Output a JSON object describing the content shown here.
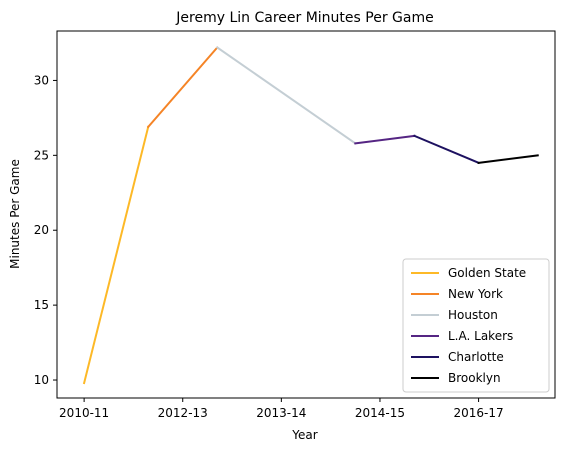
{
  "chart_data": {
    "type": "line",
    "title": "Jeremy Lin Career Minutes Per Game",
    "xlabel": "Year",
    "ylabel": "Minutes Per Game",
    "x_ticks": [
      {
        "x": 0,
        "label": "2010-11"
      },
      {
        "x": 2,
        "label": "2012-13"
      },
      {
        "x": 4,
        "label": "2013-14"
      },
      {
        "x": 6,
        "label": "2014-15"
      },
      {
        "x": 8,
        "label": "2016-17"
      }
    ],
    "y_ticks": [
      10,
      15,
      20,
      25,
      30
    ],
    "xlim": [
      -0.55,
      9.55
    ],
    "ylim": [
      8.8,
      33.3
    ],
    "grid": false,
    "legend_position": "lower-right",
    "series": [
      {
        "name": "Golden State",
        "color": "#FDB927",
        "points": [
          [
            0,
            9.8
          ],
          [
            1.3,
            26.9
          ]
        ]
      },
      {
        "name": "New York",
        "color": "#F58426",
        "points": [
          [
            1.3,
            26.9
          ],
          [
            2.7,
            32.2
          ]
        ]
      },
      {
        "name": "Houston",
        "color": "#C4CED4",
        "points": [
          [
            2.7,
            32.2
          ],
          [
            5.5,
            25.8
          ]
        ]
      },
      {
        "name": "L.A. Lakers",
        "color": "#552583",
        "points": [
          [
            5.5,
            25.8
          ],
          [
            6.7,
            26.3
          ]
        ]
      },
      {
        "name": "Charlotte",
        "color": "#1D1160",
        "points": [
          [
            6.7,
            26.3
          ],
          [
            8.0,
            24.5
          ]
        ]
      },
      {
        "name": "Brooklyn",
        "color": "#000000",
        "points": [
          [
            8.0,
            24.5
          ],
          [
            9.2,
            25.0
          ]
        ]
      }
    ]
  }
}
